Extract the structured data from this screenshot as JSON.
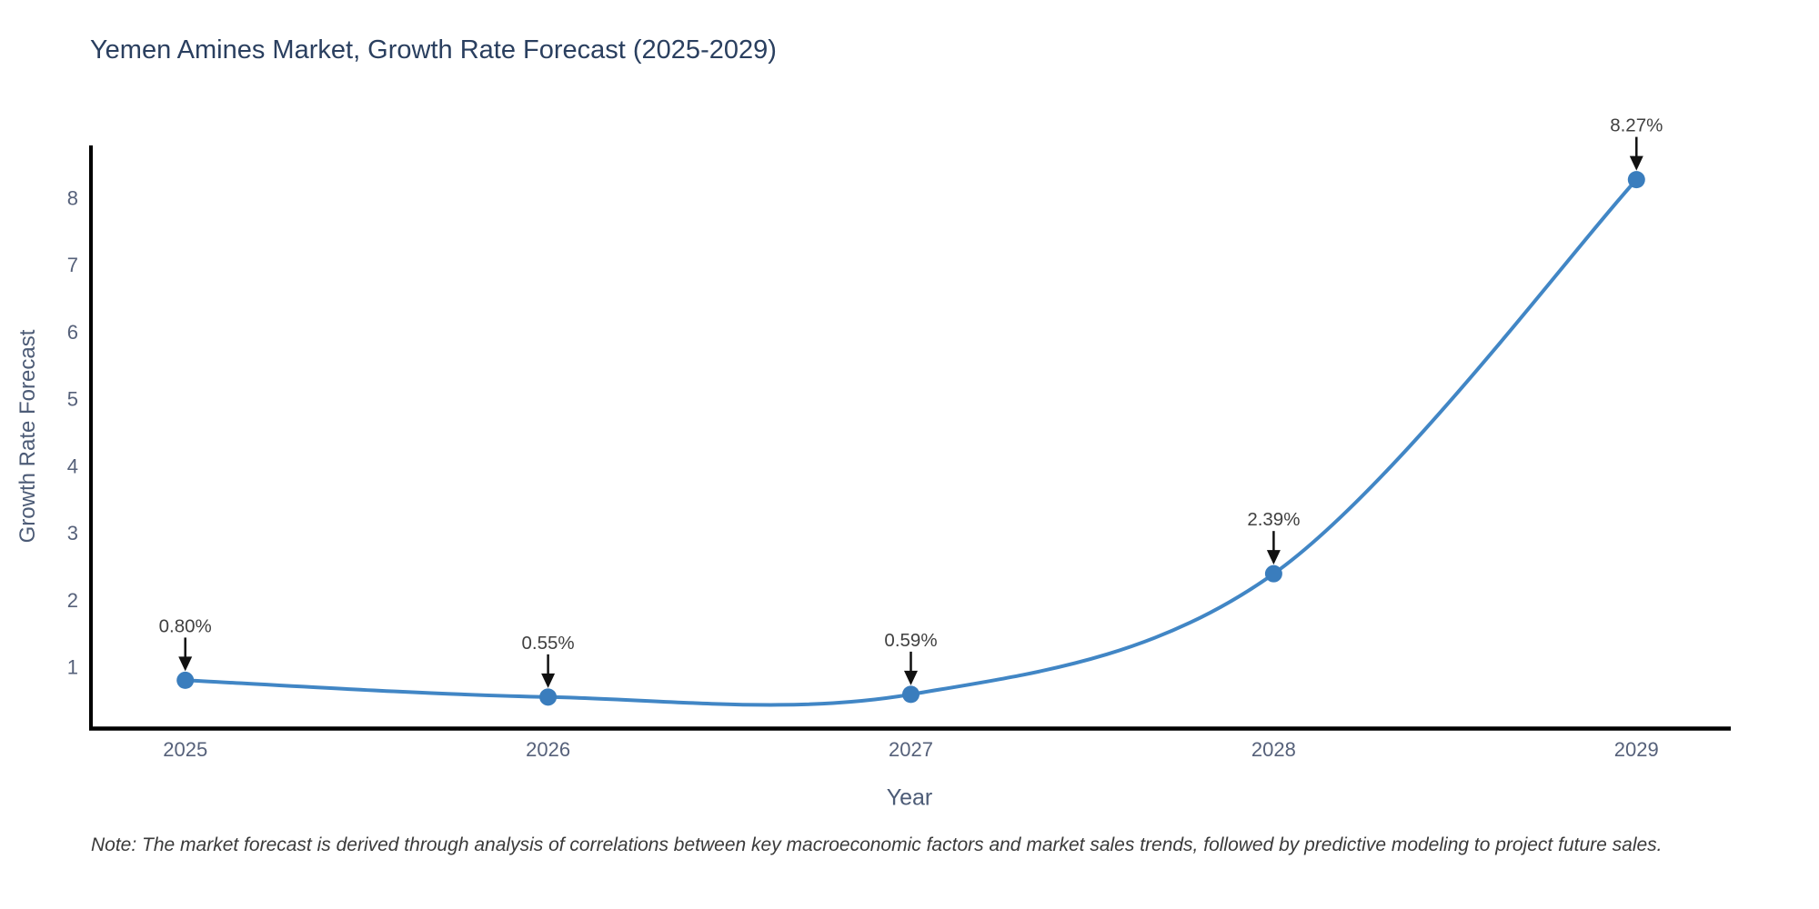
{
  "chart_data": {
    "type": "line",
    "title": "Yemen Amines Market, Growth Rate Forecast (2025-2029)",
    "xlabel": "Year",
    "ylabel": "Growth Rate Forecast",
    "note": "Note: The market forecast is derived through analysis of correlations between key macroeconomic factors and market sales trends, followed by predictive modeling to project future sales.",
    "x": [
      2025,
      2026,
      2027,
      2028,
      2029
    ],
    "values": [
      0.8,
      0.55,
      0.59,
      2.39,
      8.27
    ],
    "point_labels": [
      "0.80%",
      "0.55%",
      "0.59%",
      "2.39%",
      "8.27%"
    ],
    "x_tick_labels": [
      "2025",
      "2026",
      "2027",
      "2028",
      "2029"
    ],
    "y_ticks": [
      1,
      2,
      3,
      4,
      5,
      6,
      7,
      8
    ],
    "x_range": [
      2024.74,
      2029.26
    ],
    "y_range": [
      0.08,
      8.78
    ],
    "grid": false,
    "legend": "none",
    "line_shape": "spline",
    "colors": {
      "line": "#4186c5",
      "marker": "#3a7dbd",
      "axis_line": "#000000",
      "tick_label": "#56617a",
      "title": "#2a3f5f",
      "annotation_text": "#404040",
      "arrow": "#111111",
      "note": "#3a3a3a",
      "background": "#ffffff"
    }
  }
}
